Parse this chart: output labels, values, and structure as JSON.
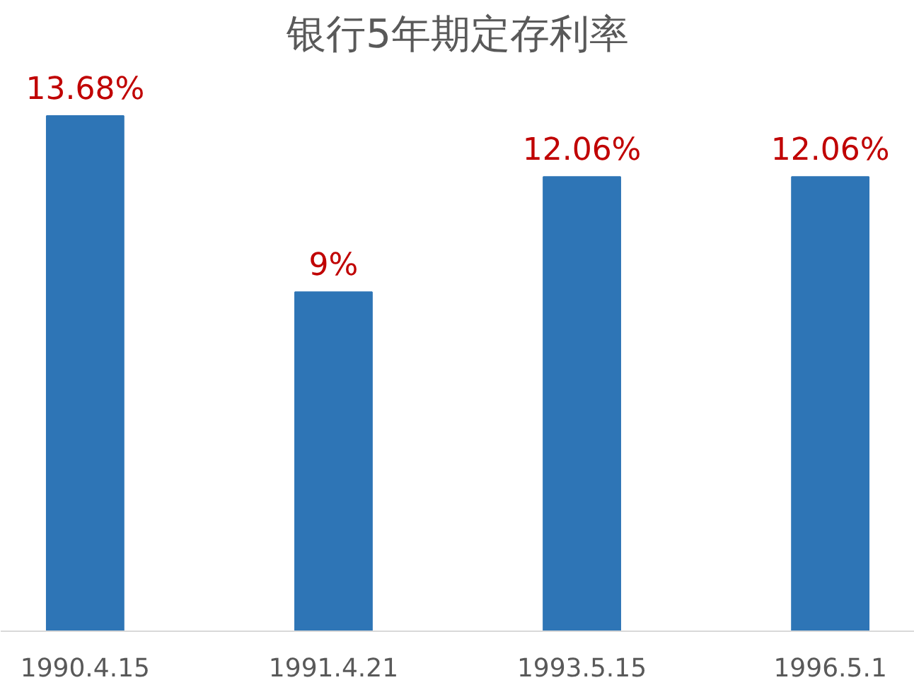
{
  "chart_data": {
    "type": "bar",
    "title": "银行5年期定存利率",
    "categories": [
      "1990.4.15",
      "1991.4.21",
      "1993.5.15",
      "1996.5.1"
    ],
    "values": [
      13.68,
      9,
      12.06,
      12.06
    ],
    "value_labels": [
      "13.68%",
      "9%",
      "12.06%",
      "12.06%"
    ],
    "color": "#2e75b6"
  }
}
